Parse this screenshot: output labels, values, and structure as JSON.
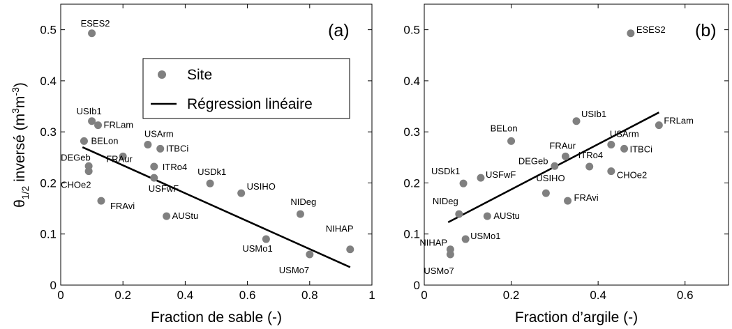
{
  "chart_data": [
    {
      "type": "scatter",
      "panel_label": "(a)",
      "xlabel": "Fraction de sable (-)",
      "ylabel_main": "θ",
      "ylabel_sub": "1/2",
      "ylabel_rest": " inversé (m",
      "ylabel_sup1": "3",
      "ylabel_mid": "m",
      "ylabel_sup2": "-3",
      "ylabel_end": ")",
      "xlim": [
        0,
        1
      ],
      "ylim": [
        0,
        0.55
      ],
      "xticks": [
        "0",
        "0.2",
        "0.4",
        "0.6",
        "0.8",
        "1"
      ],
      "xtick_values": [
        0,
        0.2,
        0.4,
        0.6,
        0.8,
        1
      ],
      "yticks": [
        "0",
        "0.1",
        "0.2",
        "0.3",
        "0.4",
        "0.5"
      ],
      "ytick_values": [
        0,
        0.1,
        0.2,
        0.3,
        0.4,
        0.5
      ],
      "legend": {
        "placement": "top-right",
        "site": "Site",
        "regression": "Régression linéaire"
      },
      "points": [
        {
          "label": "ESES2",
          "x": 0.1,
          "y": 0.493
        },
        {
          "label": "USIb1",
          "x": 0.1,
          "y": 0.321
        },
        {
          "label": "FRLam",
          "x": 0.12,
          "y": 0.313
        },
        {
          "label": "BELon",
          "x": 0.075,
          "y": 0.282
        },
        {
          "label": "USArm",
          "x": 0.28,
          "y": 0.275
        },
        {
          "label": "ITBCi",
          "x": 0.32,
          "y": 0.267
        },
        {
          "label": "FRAur",
          "x": 0.2,
          "y": 0.252
        },
        {
          "label": "DEGeb",
          "x": 0.09,
          "y": 0.233
        },
        {
          "label": "ITRo4",
          "x": 0.3,
          "y": 0.232
        },
        {
          "label": "CHOe2",
          "x": 0.09,
          "y": 0.223
        },
        {
          "label": "USFwF",
          "x": 0.3,
          "y": 0.21
        },
        {
          "label": "USDk1",
          "x": 0.48,
          "y": 0.199
        },
        {
          "label": "USIHO",
          "x": 0.58,
          "y": 0.18
        },
        {
          "label": "FRAvi",
          "x": 0.13,
          "y": 0.165
        },
        {
          "label": "NIDeg",
          "x": 0.77,
          "y": 0.139
        },
        {
          "label": "AUStu",
          "x": 0.34,
          "y": 0.135
        },
        {
          "label": "USMo1",
          "x": 0.66,
          "y": 0.09
        },
        {
          "label": "NIHAP",
          "x": 0.93,
          "y": 0.07
        },
        {
          "label": "USMo7",
          "x": 0.8,
          "y": 0.06
        }
      ],
      "regression": {
        "x": [
          0.07,
          0.93
        ],
        "y": [
          0.27,
          0.035
        ]
      }
    },
    {
      "type": "scatter",
      "panel_label": "(b)",
      "xlabel": "Fraction d’argile (-)",
      "xlim": [
        0,
        0.7
      ],
      "ylim": [
        0,
        0.55
      ],
      "xticks": [
        "0",
        "0.2",
        "0.4",
        "0.6"
      ],
      "xtick_values": [
        0,
        0.2,
        0.4,
        0.6
      ],
      "yticks": [
        "0",
        "0.1",
        "0.2",
        "0.3",
        "0.4",
        "0.5"
      ],
      "ytick_values": [
        0,
        0.1,
        0.2,
        0.3,
        0.4,
        0.5
      ],
      "points": [
        {
          "label": "ESES2",
          "x": 0.475,
          "y": 0.493
        },
        {
          "label": "USIb1",
          "x": 0.35,
          "y": 0.321
        },
        {
          "label": "FRLam",
          "x": 0.54,
          "y": 0.313
        },
        {
          "label": "BELon",
          "x": 0.2,
          "y": 0.282
        },
        {
          "label": "USArm",
          "x": 0.43,
          "y": 0.275
        },
        {
          "label": "ITBCi",
          "x": 0.46,
          "y": 0.267
        },
        {
          "label": "FRAur",
          "x": 0.325,
          "y": 0.252
        },
        {
          "label": "DEGeb",
          "x": 0.3,
          "y": 0.233
        },
        {
          "label": "ITRo4",
          "x": 0.38,
          "y": 0.232
        },
        {
          "label": "CHOe2",
          "x": 0.43,
          "y": 0.223
        },
        {
          "label": "USFwF",
          "x": 0.13,
          "y": 0.21
        },
        {
          "label": "USDk1",
          "x": 0.09,
          "y": 0.199
        },
        {
          "label": "USIHO",
          "x": 0.28,
          "y": 0.18
        },
        {
          "label": "FRAvi",
          "x": 0.33,
          "y": 0.165
        },
        {
          "label": "NIDeg",
          "x": 0.08,
          "y": 0.139
        },
        {
          "label": "AUStu",
          "x": 0.145,
          "y": 0.135
        },
        {
          "label": "USMo1",
          "x": 0.095,
          "y": 0.09
        },
        {
          "label": "NIHAP",
          "x": 0.06,
          "y": 0.07
        },
        {
          "label": "USMo7",
          "x": 0.06,
          "y": 0.06
        }
      ],
      "regression": {
        "x": [
          0.055,
          0.54
        ],
        "y": [
          0.123,
          0.338
        ]
      }
    }
  ]
}
